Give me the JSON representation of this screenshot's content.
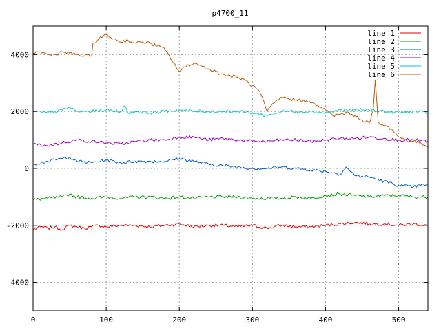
{
  "chart_data": {
    "type": "line",
    "title": "p4700_11",
    "xlabel": "",
    "ylabel": "",
    "xlim": [
      0,
      540
    ],
    "ylim": [
      -5000,
      5000
    ],
    "xticks": [
      0,
      100,
      200,
      300,
      400,
      500
    ],
    "yticks": [
      -4000,
      -2000,
      0,
      2000,
      4000
    ],
    "xtick_labels": [
      "0",
      "100",
      "200",
      "300",
      "400",
      "500"
    ],
    "ytick_labels": [
      "-4000",
      "-2000",
      "0",
      "2000",
      "4000"
    ],
    "grid": true,
    "legend_position": "top-right",
    "series": [
      {
        "name": "line 1",
        "color": "#e00000",
        "points": [
          [
            0,
            -2150
          ],
          [
            10,
            -2050
          ],
          [
            20,
            -2100
          ],
          [
            30,
            -2050
          ],
          [
            40,
            -2150
          ],
          [
            50,
            -2000
          ],
          [
            60,
            -2050
          ],
          [
            70,
            -2100
          ],
          [
            80,
            -2050
          ],
          [
            90,
            -2000
          ],
          [
            100,
            -2050
          ],
          [
            120,
            -2000
          ],
          [
            140,
            -2000
          ],
          [
            160,
            -2050
          ],
          [
            180,
            -2000
          ],
          [
            200,
            -1950
          ],
          [
            220,
            -2050
          ],
          [
            240,
            -2000
          ],
          [
            260,
            -2000
          ],
          [
            280,
            -2050
          ],
          [
            300,
            -2000
          ],
          [
            320,
            -2100
          ],
          [
            340,
            -2000
          ],
          [
            360,
            -2050
          ],
          [
            380,
            -2050
          ],
          [
            400,
            -2000
          ],
          [
            420,
            -1950
          ],
          [
            440,
            -1900
          ],
          [
            460,
            -1950
          ],
          [
            480,
            -1950
          ],
          [
            500,
            -2000
          ],
          [
            520,
            -1950
          ],
          [
            540,
            -2000
          ]
        ]
      },
      {
        "name": "line 2",
        "color": "#00a000",
        "points": [
          [
            0,
            -1100
          ],
          [
            20,
            -1050
          ],
          [
            40,
            -1000
          ],
          [
            50,
            -900
          ],
          [
            60,
            -1000
          ],
          [
            80,
            -1050
          ],
          [
            100,
            -1000
          ],
          [
            120,
            -1050
          ],
          [
            140,
            -1000
          ],
          [
            160,
            -1000
          ],
          [
            180,
            -1050
          ],
          [
            200,
            -1000
          ],
          [
            220,
            -1050
          ],
          [
            240,
            -1000
          ],
          [
            260,
            -1000
          ],
          [
            280,
            -1000
          ],
          [
            300,
            -1050
          ],
          [
            320,
            -1050
          ],
          [
            340,
            -1050
          ],
          [
            360,
            -1000
          ],
          [
            380,
            -1050
          ],
          [
            400,
            -950
          ],
          [
            420,
            -900
          ],
          [
            440,
            -950
          ],
          [
            460,
            -1000
          ],
          [
            480,
            -950
          ],
          [
            500,
            -950
          ],
          [
            520,
            -1000
          ],
          [
            540,
            -1000
          ]
        ]
      },
      {
        "name": "line 3",
        "color": "#0060c0",
        "points": [
          [
            0,
            150
          ],
          [
            20,
            250
          ],
          [
            40,
            350
          ],
          [
            50,
            400
          ],
          [
            60,
            250
          ],
          [
            80,
            200
          ],
          [
            100,
            300
          ],
          [
            120,
            200
          ],
          [
            140,
            250
          ],
          [
            160,
            250
          ],
          [
            180,
            250
          ],
          [
            200,
            350
          ],
          [
            220,
            250
          ],
          [
            240,
            150
          ],
          [
            260,
            100
          ],
          [
            280,
            50
          ],
          [
            300,
            0
          ],
          [
            320,
            0
          ],
          [
            340,
            50
          ],
          [
            360,
            0
          ],
          [
            380,
            -50
          ],
          [
            400,
            -100
          ],
          [
            420,
            -200
          ],
          [
            428,
            50
          ],
          [
            440,
            -250
          ],
          [
            460,
            -300
          ],
          [
            480,
            -450
          ],
          [
            500,
            -600
          ],
          [
            520,
            -650
          ],
          [
            540,
            -550
          ]
        ]
      },
      {
        "name": "line 4",
        "color": "#a000c0",
        "points": [
          [
            0,
            850
          ],
          [
            20,
            800
          ],
          [
            40,
            900
          ],
          [
            60,
            1000
          ],
          [
            80,
            950
          ],
          [
            100,
            900
          ],
          [
            120,
            850
          ],
          [
            140,
            950
          ],
          [
            160,
            1000
          ],
          [
            180,
            1000
          ],
          [
            200,
            1100
          ],
          [
            220,
            1100
          ],
          [
            240,
            1000
          ],
          [
            260,
            1050
          ],
          [
            280,
            1000
          ],
          [
            300,
            950
          ],
          [
            320,
            950
          ],
          [
            340,
            1000
          ],
          [
            360,
            1000
          ],
          [
            380,
            950
          ],
          [
            400,
            1000
          ],
          [
            420,
            1050
          ],
          [
            440,
            1050
          ],
          [
            460,
            1100
          ],
          [
            480,
            1050
          ],
          [
            500,
            1000
          ],
          [
            520,
            1000
          ],
          [
            540,
            950
          ]
        ]
      },
      {
        "name": "line 5",
        "color": "#00c8c8",
        "points": [
          [
            0,
            2000
          ],
          [
            20,
            1950
          ],
          [
            40,
            2050
          ],
          [
            50,
            2150
          ],
          [
            60,
            2000
          ],
          [
            80,
            2000
          ],
          [
            100,
            2050
          ],
          [
            120,
            2000
          ],
          [
            125,
            2200
          ],
          [
            130,
            1950
          ],
          [
            140,
            2000
          ],
          [
            160,
            1950
          ],
          [
            180,
            2000
          ],
          [
            200,
            2050
          ],
          [
            220,
            2000
          ],
          [
            240,
            2000
          ],
          [
            260,
            2000
          ],
          [
            280,
            2000
          ],
          [
            300,
            1950
          ],
          [
            320,
            1850
          ],
          [
            340,
            2000
          ],
          [
            360,
            2000
          ],
          [
            380,
            2000
          ],
          [
            400,
            1950
          ],
          [
            420,
            2050
          ],
          [
            440,
            2050
          ],
          [
            460,
            2050
          ],
          [
            480,
            2000
          ],
          [
            500,
            1950
          ],
          [
            520,
            2000
          ],
          [
            540,
            1950
          ]
        ]
      },
      {
        "name": "line 6",
        "color": "#b85a00",
        "points": [
          [
            0,
            4050
          ],
          [
            10,
            4100
          ],
          [
            20,
            4000
          ],
          [
            30,
            4000
          ],
          [
            40,
            4100
          ],
          [
            50,
            4050
          ],
          [
            60,
            4000
          ],
          [
            70,
            3950
          ],
          [
            80,
            3950
          ],
          [
            82,
            4400
          ],
          [
            90,
            4550
          ],
          [
            100,
            4700
          ],
          [
            110,
            4550
          ],
          [
            120,
            4450
          ],
          [
            130,
            4500
          ],
          [
            140,
            4400
          ],
          [
            150,
            4450
          ],
          [
            160,
            4400
          ],
          [
            170,
            4300
          ],
          [
            180,
            4200
          ],
          [
            190,
            3800
          ],
          [
            200,
            3400
          ],
          [
            210,
            3600
          ],
          [
            220,
            3700
          ],
          [
            230,
            3600
          ],
          [
            240,
            3500
          ],
          [
            250,
            3400
          ],
          [
            260,
            3300
          ],
          [
            270,
            3250
          ],
          [
            280,
            3200
          ],
          [
            290,
            3100
          ],
          [
            300,
            2900
          ],
          [
            310,
            2700
          ],
          [
            320,
            2000
          ],
          [
            330,
            2300
          ],
          [
            340,
            2500
          ],
          [
            350,
            2450
          ],
          [
            360,
            2400
          ],
          [
            370,
            2400
          ],
          [
            380,
            2300
          ],
          [
            390,
            2200
          ],
          [
            400,
            2050
          ],
          [
            410,
            1850
          ],
          [
            420,
            1900
          ],
          [
            430,
            1950
          ],
          [
            440,
            1850
          ],
          [
            450,
            1700
          ],
          [
            460,
            1600
          ],
          [
            465,
            2000
          ],
          [
            468,
            3100
          ],
          [
            472,
            1600
          ],
          [
            480,
            1500
          ],
          [
            490,
            1400
          ],
          [
            500,
            1100
          ],
          [
            510,
            1000
          ],
          [
            520,
            950
          ],
          [
            530,
            900
          ],
          [
            540,
            750
          ]
        ]
      }
    ]
  }
}
